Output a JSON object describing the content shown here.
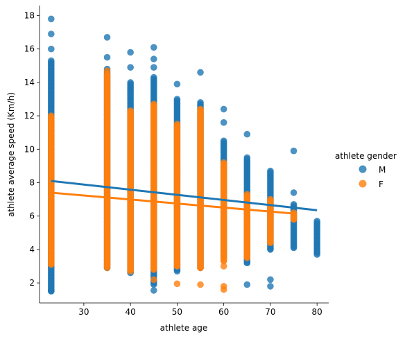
{
  "chart_data": {
    "type": "scatter",
    "title": "",
    "xlabel": "athlete age",
    "ylabel": "athlete average speed (Km/h)",
    "xlim": [
      20.5,
      82.5
    ],
    "ylim": [
      0.8,
      18.6
    ],
    "xticks": [
      30,
      40,
      50,
      60,
      70,
      80
    ],
    "yticks": [
      2,
      4,
      6,
      8,
      10,
      12,
      14,
      16,
      18
    ],
    "grid": false,
    "legend": {
      "title": "athlete gender",
      "placement": "right"
    },
    "series": [
      {
        "name": "M",
        "color": "#1f77b4",
        "columns": [
          {
            "x": 23,
            "min": 1.5,
            "max": 15.3,
            "outliers": [
              16.0,
              16.9,
              17.8,
              1.55
            ]
          },
          {
            "x": 35,
            "min": 2.9,
            "max": 14.8,
            "outliers": [
              15.5,
              16.7
            ]
          },
          {
            "x": 40,
            "min": 2.6,
            "max": 14.0,
            "outliers": [
              14.9,
              15.8
            ]
          },
          {
            "x": 45,
            "min": 1.9,
            "max": 14.3,
            "outliers": [
              14.9,
              15.4,
              16.1,
              1.55
            ]
          },
          {
            "x": 50,
            "min": 2.7,
            "max": 13.0,
            "outliers": [
              13.9
            ]
          },
          {
            "x": 55,
            "min": 2.9,
            "max": 12.8,
            "outliers": [
              14.6
            ]
          },
          {
            "x": 60,
            "min": 3.5,
            "max": 10.5,
            "outliers": [
              11.6,
              12.4
            ]
          },
          {
            "x": 65,
            "min": 3.2,
            "max": 9.5,
            "outliers": [
              10.9,
              1.9
            ]
          },
          {
            "x": 70,
            "min": 4.0,
            "max": 8.7,
            "outliers": [
              2.2,
              1.8
            ]
          },
          {
            "x": 75,
            "min": 4.1,
            "max": 6.7,
            "outliers": [
              7.4,
              9.9
            ]
          },
          {
            "x": 80,
            "min": 3.7,
            "max": 5.7,
            "outliers": []
          }
        ],
        "regression": {
          "x": [
            23,
            80
          ],
          "y": [
            8.1,
            6.35
          ]
        }
      },
      {
        "name": "F",
        "color": "#ff7f0e",
        "columns": [
          {
            "x": 23,
            "min": 3.1,
            "max": 12.0,
            "outliers": []
          },
          {
            "x": 35,
            "min": 3.0,
            "max": 14.5,
            "outliers": [
              14.7,
              2.9
            ]
          },
          {
            "x": 40,
            "min": 2.8,
            "max": 12.3,
            "outliers": [
              2.7
            ]
          },
          {
            "x": 45,
            "min": 2.8,
            "max": 12.7,
            "outliers": [
              2.2
            ]
          },
          {
            "x": 50,
            "min": 3.0,
            "max": 11.5,
            "outliers": [
              1.95
            ]
          },
          {
            "x": 55,
            "min": 2.9,
            "max": 12.4,
            "outliers": [
              1.9
            ]
          },
          {
            "x": 60,
            "min": 3.3,
            "max": 9.2,
            "outliers": [
              3.0,
              1.8,
              1.6
            ]
          },
          {
            "x": 65,
            "min": 3.5,
            "max": 7.3,
            "outliers": []
          },
          {
            "x": 70,
            "min": 4.4,
            "max": 7.0,
            "outliers": []
          },
          {
            "x": 75,
            "min": 5.8,
            "max": 6.2,
            "outliers": []
          }
        ],
        "regression": {
          "x": [
            23,
            75
          ],
          "y": [
            7.4,
            6.15
          ]
        }
      }
    ]
  }
}
